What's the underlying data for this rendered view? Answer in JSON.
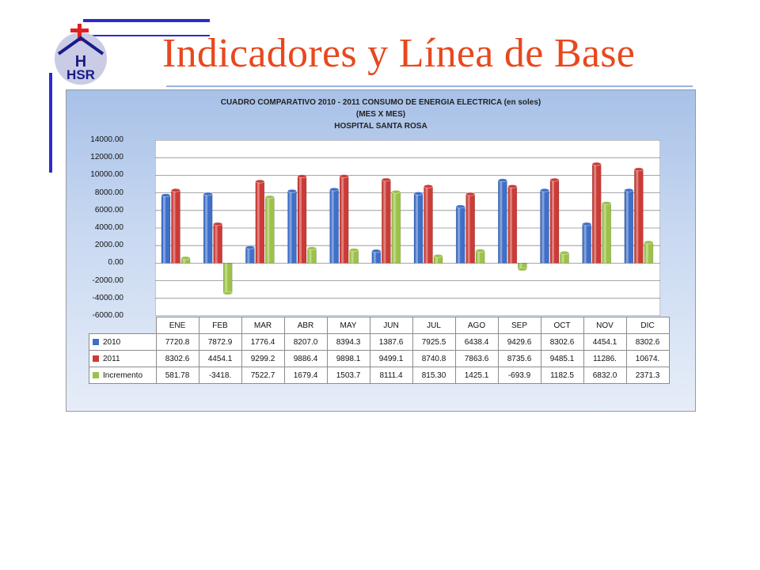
{
  "slide": {
    "title": "Indicadores y Línea de Base"
  },
  "logo": {
    "text": "HSR"
  },
  "colors": {
    "title": "#e8481e",
    "accent": "#2b2bd0",
    "series_2010": "#3f6fc8",
    "series_2011": "#cc3b36",
    "series_increment": "#9cc24a"
  },
  "chart_data": {
    "type": "bar",
    "title": "CUADRO COMPARATIVO 2010 - 2011     CONSUMO  DE ENERGIA ELECTRICA (en soles)",
    "subtitle": "(MES X MES)",
    "subtitle2": "HOSPITAL SANTA ROSA",
    "xlabel": "",
    "ylabel": "",
    "ylim": [
      -6000,
      14000
    ],
    "yticks": [
      "14000.00",
      "12000.00",
      "10000.00",
      "8000.00",
      "6000.00",
      "4000.00",
      "2000.00",
      "0.00",
      "-2000.00",
      "-4000.00",
      "-6000.00"
    ],
    "grid": true,
    "legend": "left (in data table)",
    "categories": [
      "ENE",
      "FEB",
      "MAR",
      "ABR",
      "MAY",
      "JUN",
      "JUL",
      "AGO",
      "SEP",
      "OCT",
      "NOV",
      "DIC"
    ],
    "series": [
      {
        "name": "2010",
        "values": [
          7720.8,
          7872.9,
          1776.4,
          8207.0,
          8394.3,
          1387.6,
          7925.5,
          6438.4,
          9429.6,
          8302.6,
          4454.1,
          8302.6
        ],
        "labels": [
          "7720.8",
          "7872.9",
          "1776.4",
          "8207.0",
          "8394.3",
          "1387.6",
          "7925.5",
          "6438.4",
          "9429.6",
          "8302.6",
          "4454.1",
          "8302.6"
        ]
      },
      {
        "name": "2011",
        "values": [
          8302.6,
          4454.1,
          9299.2,
          9886.4,
          9898.1,
          9499.1,
          8740.8,
          7863.6,
          8735.6,
          9485.1,
          11286,
          10674
        ],
        "labels": [
          "8302.6",
          "4454.1",
          "9299.2",
          "9886.4",
          "9898.1",
          "9499.1",
          "8740.8",
          "7863.6",
          "8735.6",
          "9485.1",
          "11286.",
          "10674."
        ]
      },
      {
        "name": "Incremento",
        "values": [
          581.78,
          -3418,
          7522.7,
          1679.4,
          1503.7,
          8111.4,
          815.3,
          1425.1,
          -693.9,
          1182.5,
          6832.0,
          2371.3
        ],
        "labels": [
          "581.78",
          "-3418.",
          "7522.7",
          "1679.4",
          "1503.7",
          "8111.4",
          "815.30",
          "1425.1",
          "-693.9",
          "1182.5",
          "6832.0",
          "2371.3"
        ]
      }
    ]
  }
}
